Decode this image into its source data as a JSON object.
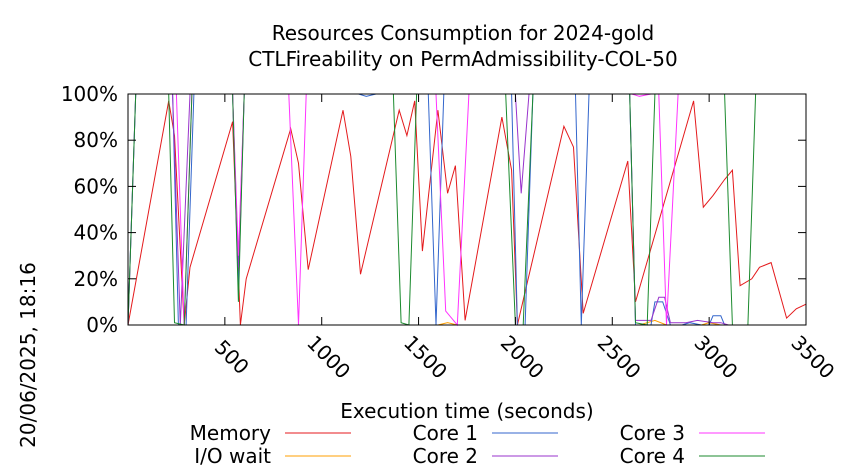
{
  "chart_data": {
    "type": "line",
    "title": "Resources Consumption for 2024-gold",
    "subtitle": "CTLFireability on PermAdmissibility-COL-50",
    "xlabel": "Execution time (seconds)",
    "ylabel": "",
    "side_label": "20/06/2025, 18:16",
    "xlim": [
      0,
      3500
    ],
    "ylim": [
      0,
      100
    ],
    "x_ticks": [
      500,
      1000,
      1500,
      2000,
      2500,
      3000,
      3500
    ],
    "y_ticks": [
      0,
      20,
      40,
      60,
      80,
      100
    ],
    "y_tick_labels": [
      "0%",
      "20%",
      "40%",
      "60%",
      "80%",
      "100%"
    ],
    "legend_position": "bottom",
    "series": [
      {
        "name": "Memory",
        "color": "#e41a1c",
        "points": [
          [
            0,
            0
          ],
          [
            210,
            97
          ],
          [
            240,
            82
          ],
          [
            290,
            0
          ],
          [
            320,
            25
          ],
          [
            540,
            88
          ],
          [
            580,
            0
          ],
          [
            610,
            20
          ],
          [
            840,
            85
          ],
          [
            880,
            70
          ],
          [
            930,
            24
          ],
          [
            1110,
            93
          ],
          [
            1150,
            73
          ],
          [
            1200,
            22
          ],
          [
            1400,
            93
          ],
          [
            1440,
            82
          ],
          [
            1480,
            97
          ],
          [
            1520,
            32
          ],
          [
            1600,
            93
          ],
          [
            1650,
            57
          ],
          [
            1690,
            69
          ],
          [
            1740,
            2
          ],
          [
            1930,
            90
          ],
          [
            1980,
            67
          ],
          [
            2010,
            0
          ],
          [
            2060,
            18
          ],
          [
            2250,
            86
          ],
          [
            2300,
            77
          ],
          [
            2350,
            5
          ],
          [
            2580,
            71
          ],
          [
            2620,
            10
          ],
          [
            2920,
            97
          ],
          [
            2970,
            51
          ],
          [
            3020,
            56
          ],
          [
            3080,
            63
          ],
          [
            3120,
            67
          ],
          [
            3160,
            17
          ],
          [
            3220,
            20
          ],
          [
            3260,
            25
          ],
          [
            3320,
            27
          ],
          [
            3400,
            3
          ],
          [
            3450,
            7
          ],
          [
            3500,
            9
          ]
        ]
      },
      {
        "name": "I/O wait",
        "color": "#ff9f00",
        "points": [
          [
            0,
            0
          ],
          [
            1600,
            0
          ],
          [
            1650,
            1
          ],
          [
            1700,
            0
          ],
          [
            2640,
            0
          ],
          [
            2680,
            1
          ],
          [
            2720,
            2
          ],
          [
            2780,
            0
          ],
          [
            2960,
            0
          ],
          [
            3000,
            1
          ],
          [
            3060,
            0
          ],
          [
            3500,
            0
          ]
        ]
      },
      {
        "name": "Core 1",
        "color": "#3366cc",
        "points": [
          [
            0,
            0
          ],
          [
            40,
            100
          ],
          [
            230,
            100
          ],
          [
            260,
            0
          ],
          [
            300,
            0
          ],
          [
            340,
            100
          ],
          [
            540,
            100
          ],
          [
            570,
            15
          ],
          [
            600,
            100
          ],
          [
            1190,
            100
          ],
          [
            1230,
            99
          ],
          [
            1280,
            100
          ],
          [
            1550,
            100
          ],
          [
            1590,
            0
          ],
          [
            1630,
            100
          ],
          [
            1980,
            100
          ],
          [
            2010,
            0
          ],
          [
            2050,
            0
          ],
          [
            2090,
            100
          ],
          [
            2310,
            100
          ],
          [
            2340,
            0
          ],
          [
            2380,
            100
          ],
          [
            2590,
            100
          ],
          [
            2620,
            0
          ],
          [
            2700,
            0
          ],
          [
            2720,
            10
          ],
          [
            2760,
            10
          ],
          [
            2800,
            0
          ],
          [
            2860,
            0
          ],
          [
            2900,
            1
          ],
          [
            2960,
            0
          ],
          [
            3000,
            0
          ],
          [
            3020,
            4
          ],
          [
            3060,
            4
          ],
          [
            3080,
            0
          ],
          [
            3500,
            0
          ]
        ]
      },
      {
        "name": "Core 2",
        "color": "#9933cc",
        "points": [
          [
            0,
            0
          ],
          [
            40,
            100
          ],
          [
            230,
            100
          ],
          [
            270,
            0
          ],
          [
            320,
            100
          ],
          [
            540,
            100
          ],
          [
            570,
            25
          ],
          [
            600,
            100
          ],
          [
            2000,
            100
          ],
          [
            2030,
            57
          ],
          [
            2070,
            100
          ],
          [
            2590,
            100
          ],
          [
            2620,
            2
          ],
          [
            2700,
            2
          ],
          [
            2740,
            12
          ],
          [
            2770,
            12
          ],
          [
            2800,
            1
          ],
          [
            2880,
            1
          ],
          [
            2940,
            2
          ],
          [
            3020,
            1
          ],
          [
            3060,
            1
          ],
          [
            3100,
            0
          ],
          [
            3500,
            0
          ]
        ]
      },
      {
        "name": "Core 3",
        "color": "#ff33ff",
        "points": [
          [
            180,
            100
          ],
          [
            250,
            100
          ],
          [
            290,
            0
          ],
          [
            330,
            100
          ],
          [
            540,
            100
          ],
          [
            570,
            30
          ],
          [
            600,
            100
          ],
          [
            830,
            100
          ],
          [
            880,
            0
          ],
          [
            920,
            100
          ],
          [
            1590,
            100
          ],
          [
            1640,
            6
          ],
          [
            1700,
            0
          ],
          [
            1760,
            100
          ],
          [
            2600,
            100
          ],
          [
            2640,
            99
          ],
          [
            2700,
            100
          ],
          [
            2740,
            100
          ],
          [
            2780,
            0
          ],
          [
            2840,
            100
          ],
          [
            3500,
            100
          ]
        ]
      },
      {
        "name": "Core 4",
        "color": "#1b8a2e",
        "points": [
          [
            0,
            0
          ],
          [
            40,
            100
          ],
          [
            210,
            100
          ],
          [
            240,
            1
          ],
          [
            290,
            0
          ],
          [
            330,
            100
          ],
          [
            540,
            100
          ],
          [
            570,
            10
          ],
          [
            600,
            100
          ],
          [
            1370,
            100
          ],
          [
            1410,
            1
          ],
          [
            1450,
            0
          ],
          [
            1490,
            100
          ],
          [
            1950,
            100
          ],
          [
            2000,
            0
          ],
          [
            2040,
            0
          ],
          [
            2090,
            100
          ],
          [
            2590,
            100
          ],
          [
            2620,
            1
          ],
          [
            2680,
            0
          ],
          [
            2720,
            100
          ],
          [
            3080,
            100
          ],
          [
            3120,
            0
          ],
          [
            3200,
            0
          ],
          [
            3240,
            100
          ],
          [
            3500,
            100
          ]
        ]
      }
    ]
  }
}
